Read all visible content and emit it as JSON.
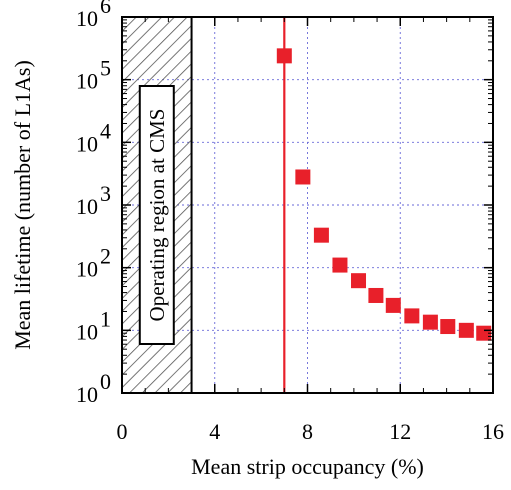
{
  "chart_data": {
    "type": "scatter",
    "title": "",
    "xlabel": "Mean strip occupancy (%)",
    "ylabel": "Mean lifetime (number of L1As)",
    "xlim": [
      0,
      16
    ],
    "ylim": [
      1,
      1000000
    ],
    "y_scale": "log",
    "grid": true,
    "x_ticks": [
      0,
      4,
      8,
      12,
      16
    ],
    "x_tick_labels": [
      "0",
      "4",
      "8",
      "12",
      "16"
    ],
    "y_ticks": [
      1,
      10,
      100,
      1000,
      10000,
      100000,
      1000000
    ],
    "y_tick_labels": [
      {
        "base": "10",
        "exp": "0"
      },
      {
        "base": "10",
        "exp": "1"
      },
      {
        "base": "10",
        "exp": "2"
      },
      {
        "base": "10",
        "exp": "3"
      },
      {
        "base": "10",
        "exp": "4"
      },
      {
        "base": "10",
        "exp": "5"
      },
      {
        "base": "10",
        "exp": "6"
      }
    ],
    "series": [
      {
        "color": "#e8202a",
        "marker": "square",
        "points": [
          {
            "x": 7.0,
            "y": 240000
          },
          {
            "x": 7.8,
            "y": 2800
          },
          {
            "x": 8.6,
            "y": 330
          },
          {
            "x": 9.4,
            "y": 110
          },
          {
            "x": 10.2,
            "y": 62
          },
          {
            "x": 10.95,
            "y": 36
          },
          {
            "x": 11.7,
            "y": 25
          },
          {
            "x": 12.5,
            "y": 17
          },
          {
            "x": 13.3,
            "y": 13.5
          },
          {
            "x": 14.05,
            "y": 11.5
          },
          {
            "x": 14.85,
            "y": 10
          },
          {
            "x": 15.6,
            "y": 9
          }
        ]
      }
    ],
    "vertical_line": {
      "x": 7.0,
      "color": "#e8202a"
    },
    "shaded_region": {
      "x_start": 0,
      "x_end": 3,
      "label": "Operating region at CMS"
    }
  }
}
